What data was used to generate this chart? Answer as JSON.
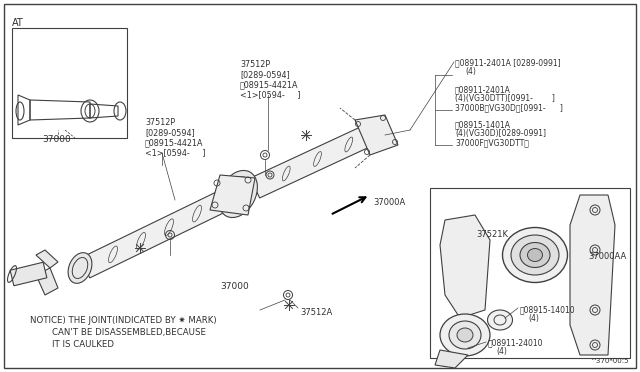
{
  "bg_color": "#ffffff",
  "line_color": "#404040",
  "text_color": "#303030",
  "title_at": "AT",
  "diagram_code": "^370*00:5",
  "notice_line1": "NOTICE) THE JOINT(INDICATED BY ✷ MARK)",
  "notice_line2": "CAN'T BE DISASSEMBLED,BECAUSE",
  "notice_line3": "IT IS CAULKED",
  "figsize": [
    6.4,
    3.72
  ],
  "dpi": 100
}
